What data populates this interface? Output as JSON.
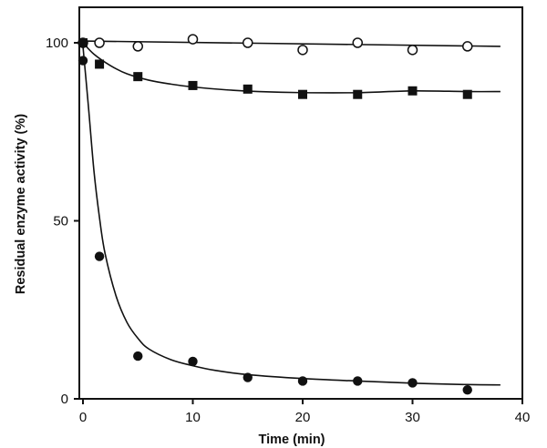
{
  "chart_data": {
    "type": "scatter",
    "title": "",
    "xlabel": "Time  (min)",
    "ylabel": "Residual enzyme activity  (%)",
    "xlim": [
      0,
      40
    ],
    "ylim": [
      0,
      102
    ],
    "xticks": [
      0,
      10,
      20,
      30,
      40
    ],
    "yticks": [
      0,
      50,
      100
    ],
    "grid": false,
    "legend": "none",
    "series": [
      {
        "marker": "open-circle",
        "color": "#111111",
        "points": [
          [
            0,
            100
          ],
          [
            1.5,
            100
          ],
          [
            5,
            99
          ],
          [
            10,
            101
          ],
          [
            15,
            100
          ],
          [
            20,
            98
          ],
          [
            25,
            100
          ],
          [
            30,
            98
          ],
          [
            35,
            99
          ]
        ],
        "fit": [
          [
            0,
            100.5
          ],
          [
            38,
            99
          ]
        ]
      },
      {
        "marker": "filled-square",
        "color": "#111111",
        "points": [
          [
            0,
            100
          ],
          [
            1.5,
            94
          ],
          [
            5,
            90.5
          ],
          [
            10,
            88
          ],
          [
            15,
            87
          ],
          [
            20,
            85.5
          ],
          [
            25,
            85.5
          ],
          [
            30,
            86.5
          ],
          [
            35,
            85.5
          ]
        ],
        "fit": [
          [
            0,
            100
          ],
          [
            1,
            96.8
          ],
          [
            2.5,
            93.6
          ],
          [
            4,
            91.3
          ],
          [
            6,
            89.5
          ],
          [
            8,
            88.4
          ],
          [
            10,
            87.6
          ],
          [
            13,
            86.8
          ],
          [
            16,
            86.3
          ],
          [
            20,
            86
          ],
          [
            25,
            86
          ],
          [
            30,
            86.5
          ],
          [
            35,
            86.3
          ],
          [
            38,
            86.3
          ]
        ]
      },
      {
        "marker": "filled-circle",
        "color": "#111111",
        "points": [
          [
            0,
            95
          ],
          [
            1.5,
            40
          ],
          [
            5,
            12
          ],
          [
            10,
            10.5
          ],
          [
            15,
            6
          ],
          [
            20,
            5
          ],
          [
            25,
            5
          ],
          [
            30,
            4.5
          ],
          [
            35,
            2.5
          ]
        ],
        "fit": [
          [
            0,
            99
          ],
          [
            0.5,
            82
          ],
          [
            1,
            64
          ],
          [
            1.5,
            51
          ],
          [
            2,
            41
          ],
          [
            3,
            29
          ],
          [
            4,
            21.5
          ],
          [
            5,
            17
          ],
          [
            6,
            14
          ],
          [
            8,
            11
          ],
          [
            10,
            9.3
          ],
          [
            12,
            8
          ],
          [
            15,
            6.8
          ],
          [
            20,
            5.7
          ],
          [
            25,
            5
          ],
          [
            30,
            4.4
          ],
          [
            35,
            4
          ],
          [
            38,
            3.9
          ]
        ]
      }
    ]
  }
}
